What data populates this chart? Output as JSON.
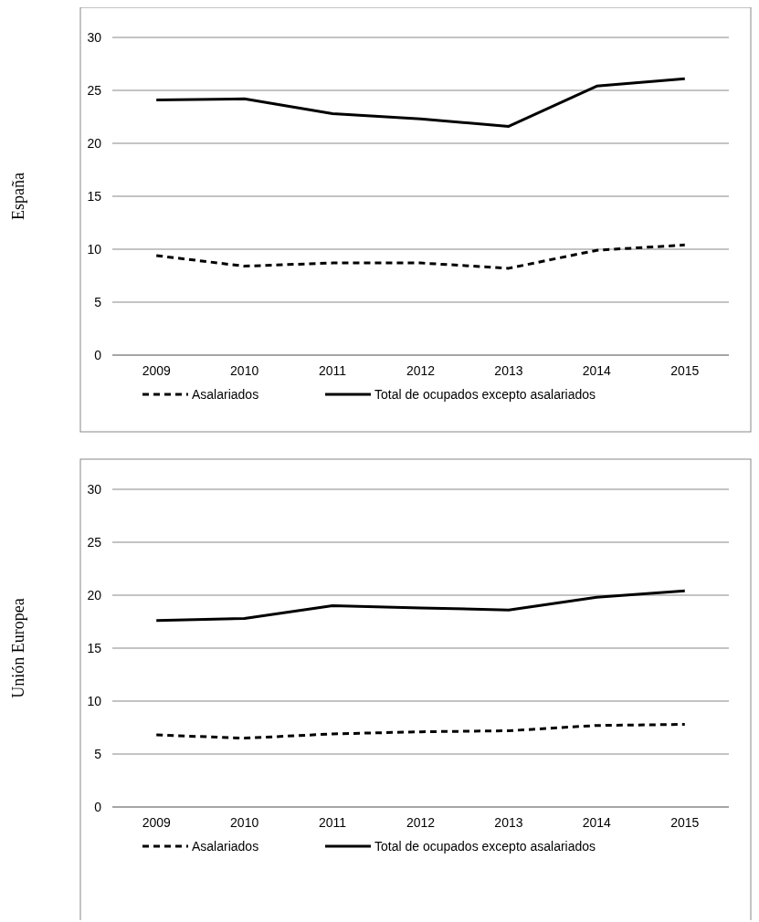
{
  "chart_data": [
    {
      "type": "line",
      "ylabel": "España",
      "categories": [
        "2009",
        "2010",
        "2011",
        "2012",
        "2013",
        "2014",
        "2015"
      ],
      "ylim": [
        0,
        30
      ],
      "yticks": [
        0,
        5,
        10,
        15,
        20,
        25,
        30
      ],
      "grid": "y",
      "legend": "bottom",
      "series": [
        {
          "name": "Asalariados",
          "color": "#000000",
          "line_style": "dashed",
          "values": [
            9.4,
            8.4,
            8.7,
            8.7,
            8.2,
            9.9,
            10.4
          ]
        },
        {
          "name": "Total de ocupados excepto asalariados",
          "color": "#000000",
          "line_style": "solid",
          "values": [
            24.1,
            24.2,
            22.8,
            22.3,
            21.6,
            25.4,
            26.1
          ]
        }
      ]
    },
    {
      "type": "line",
      "ylabel": "Unión Europea",
      "categories": [
        "2009",
        "2010",
        "2011",
        "2012",
        "2013",
        "2014",
        "2015"
      ],
      "ylim": [
        0,
        30
      ],
      "yticks": [
        0,
        5,
        10,
        15,
        20,
        25,
        30
      ],
      "grid": "y",
      "legend": "bottom",
      "series": [
        {
          "name": "Asalariados",
          "color": "#000000",
          "line_style": "dashed",
          "values": [
            6.8,
            6.5,
            6.9,
            7.1,
            7.2,
            7.7,
            7.8
          ]
        },
        {
          "name": "Total de ocupados excepto asalariados",
          "color": "#000000",
          "line_style": "solid",
          "values": [
            17.6,
            17.8,
            19.0,
            18.8,
            18.6,
            19.8,
            20.4
          ]
        }
      ]
    }
  ]
}
